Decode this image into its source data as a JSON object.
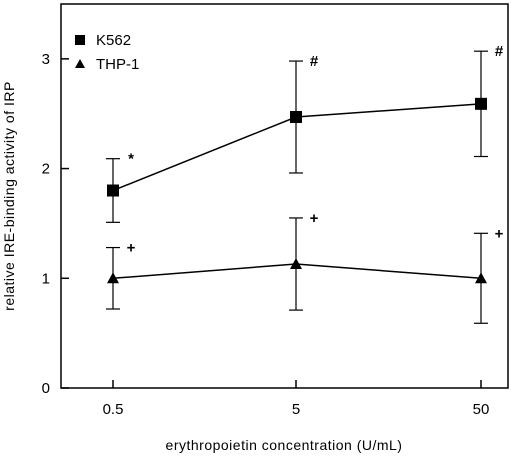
{
  "chart_data": {
    "type": "line",
    "xlabel": "erythropoietin concentration (U/mL)",
    "ylabel": "relative IRE-binding activity of IRP",
    "categories": [
      "0.5",
      "5",
      "50"
    ],
    "x_scale": "log",
    "ylim": [
      0,
      3.5
    ],
    "yticks": [
      "0",
      "1",
      "2",
      "3"
    ],
    "grid": false,
    "legend_position": "top-left",
    "series": [
      {
        "name": "K562",
        "marker": "square",
        "values": [
          1.8,
          2.47,
          2.59
        ],
        "error": [
          0.29,
          0.51,
          0.48
        ],
        "annotations": [
          "*",
          "#",
          "#"
        ]
      },
      {
        "name": "THP-1",
        "marker": "triangle",
        "values": [
          1.0,
          1.13,
          1.0
        ],
        "error": [
          0.28,
          0.42,
          0.41
        ],
        "annotations": [
          "+",
          "+",
          "+"
        ]
      }
    ]
  }
}
